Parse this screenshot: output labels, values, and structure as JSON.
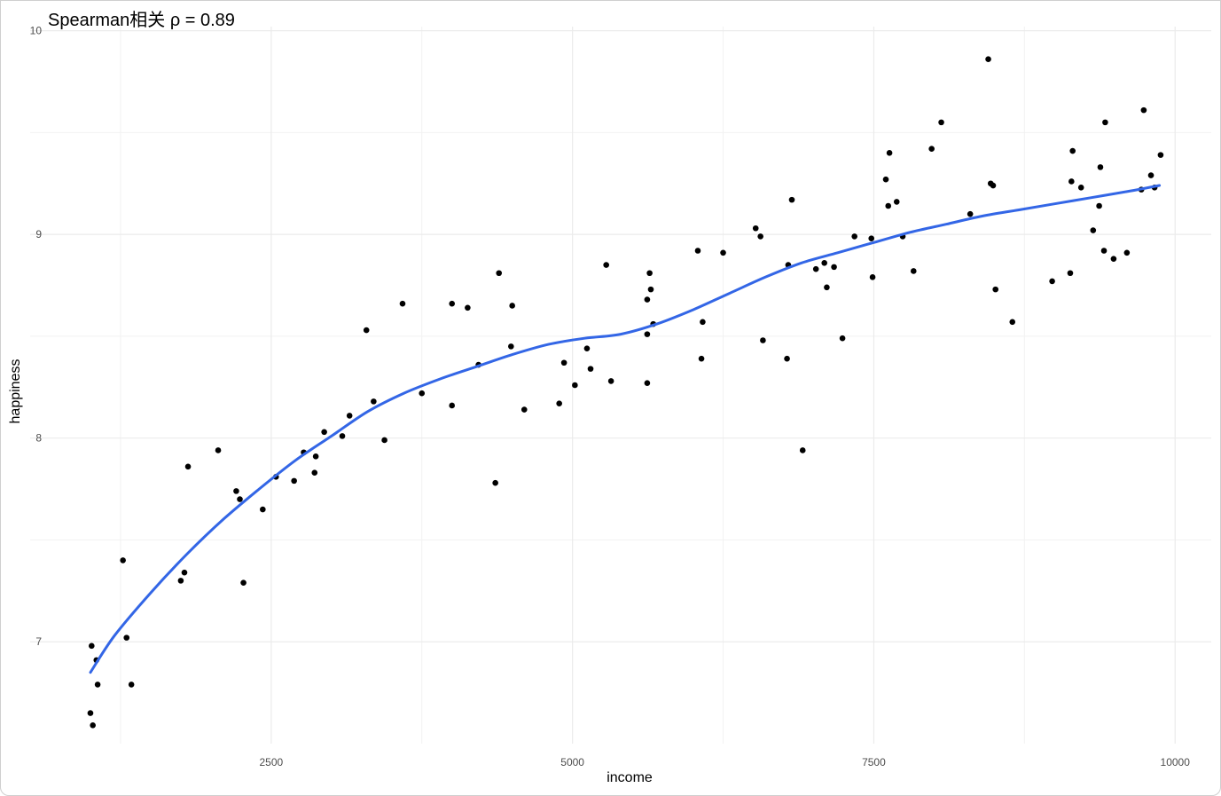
{
  "chart_data": {
    "type": "scatter",
    "title": "Spearman相关 ρ = 0.89",
    "xlabel": "income",
    "ylabel": "happiness",
    "xlim": [
      500,
      10300
    ],
    "ylim": [
      6.5,
      10.02
    ],
    "x_ticks": [
      2500,
      5000,
      7500,
      10000
    ],
    "x_tick_labels": [
      "2500",
      "5000",
      "7500",
      "10000"
    ],
    "y_ticks": [
      7,
      8,
      9,
      10
    ],
    "y_tick_labels": [
      "7",
      "8",
      "9",
      "10"
    ],
    "grid": true,
    "legend": "none",
    "point_color": "#000000",
    "trend_color": "#3366e6",
    "series": [
      {
        "type": "points",
        "x": [
          1000,
          1010,
          1020,
          1050,
          1060,
          1270,
          1300,
          1340,
          1750,
          1780,
          1810,
          2060,
          2210,
          2240,
          2270,
          2430,
          2540,
          2690,
          2770,
          2860,
          2870,
          2940,
          3090,
          3150,
          3290,
          3350,
          3440,
          3590,
          3750,
          4000,
          4000,
          4130,
          4220,
          4360,
          4390,
          4490,
          4500,
          4600,
          4890,
          4930,
          5020,
          5120,
          5150,
          5280,
          5320,
          5620,
          5620,
          5620,
          5640,
          5650,
          5670,
          6040,
          6070,
          6080,
          6250,
          6520,
          6560,
          6580,
          6780,
          6790,
          6820,
          6910,
          7020,
          7090,
          7110,
          7170,
          7240,
          7340,
          7480,
          7490,
          7600,
          7620,
          7630,
          7690,
          7740,
          7830,
          7980,
          8060,
          8300,
          8450,
          8470,
          8490,
          8510,
          8650,
          8980,
          9130,
          9140,
          9150,
          9220,
          9320,
          9370,
          9380,
          9410,
          9420,
          9490,
          9600,
          9720,
          9740,
          9800,
          9830,
          9880
        ],
        "y": [
          6.65,
          6.98,
          6.59,
          6.91,
          6.79,
          7.4,
          7.02,
          6.79,
          7.3,
          7.34,
          7.86,
          7.94,
          7.74,
          7.7,
          7.29,
          7.65,
          7.81,
          7.79,
          7.93,
          7.83,
          7.91,
          8.03,
          8.01,
          8.11,
          8.53,
          8.18,
          7.99,
          8.66,
          8.22,
          8.16,
          8.66,
          8.64,
          8.36,
          7.78,
          8.81,
          8.45,
          8.65,
          8.14,
          8.17,
          8.37,
          8.26,
          8.44,
          8.34,
          8.85,
          8.28,
          8.27,
          8.51,
          8.68,
          8.81,
          8.73,
          8.56,
          8.92,
          8.39,
          8.57,
          8.91,
          9.03,
          8.99,
          8.48,
          8.39,
          8.85,
          9.17,
          7.94,
          8.83,
          8.86,
          8.74,
          8.84,
          8.49,
          8.99,
          8.98,
          8.79,
          9.27,
          9.14,
          9.4,
          9.16,
          8.99,
          8.82,
          9.42,
          9.55,
          9.1,
          9.86,
          9.25,
          9.24,
          8.73,
          8.57,
          8.77,
          8.81,
          9.26,
          9.41,
          9.23,
          9.02,
          9.14,
          9.33,
          8.92,
          9.55,
          8.88,
          8.91,
          9.22,
          9.61,
          9.29,
          9.23,
          9.39
        ]
      },
      {
        "type": "smooth",
        "x": [
          1000,
          1200,
          1500,
          1800,
          2100,
          2400,
          2700,
          3000,
          3300,
          3600,
          3900,
          4200,
          4500,
          4800,
          5100,
          5400,
          5700,
          6000,
          6300,
          6600,
          6900,
          7200,
          7500,
          7800,
          8100,
          8400,
          8700,
          9000,
          9300,
          9600,
          9870
        ],
        "y": [
          6.85,
          7.03,
          7.24,
          7.43,
          7.6,
          7.75,
          7.89,
          8.01,
          8.13,
          8.22,
          8.29,
          8.35,
          8.41,
          8.46,
          8.49,
          8.51,
          8.56,
          8.63,
          8.71,
          8.79,
          8.86,
          8.91,
          8.96,
          9.01,
          9.05,
          9.09,
          9.12,
          9.15,
          9.18,
          9.21,
          9.24
        ]
      }
    ]
  }
}
